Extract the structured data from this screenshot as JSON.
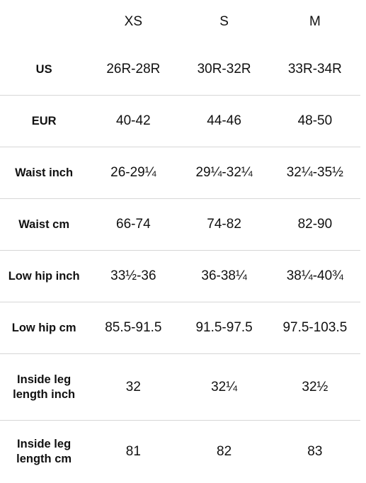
{
  "table": {
    "corner": "",
    "sizes": [
      "XS",
      "S",
      "M"
    ],
    "rows": [
      {
        "label": "US",
        "values": [
          "26R-28R",
          "30R-32R",
          "33R-34R"
        ]
      },
      {
        "label": "EUR",
        "values": [
          "40-42",
          "44-46",
          "48-50"
        ]
      },
      {
        "label": "Waist inch",
        "values": [
          "26-29¼",
          "29¼-32¼",
          "32¼-35½"
        ]
      },
      {
        "label": "Waist cm",
        "values": [
          "66-74",
          "74-82",
          "82-90"
        ]
      },
      {
        "label": "Low hip inch",
        "values": [
          "33½-36",
          "36-38¼",
          "38¼-40¾"
        ]
      },
      {
        "label": "Low hip cm",
        "values": [
          "85.5-91.5",
          "91.5-97.5",
          "97.5-103.5"
        ]
      },
      {
        "label_line1": "Inside leg",
        "label_line2": "length inch",
        "values": [
          "32",
          "32¼",
          "32½"
        ]
      },
      {
        "label_line1": "Inside leg",
        "label_line2": "length cm",
        "values": [
          "81",
          "82",
          "83"
        ]
      }
    ]
  }
}
